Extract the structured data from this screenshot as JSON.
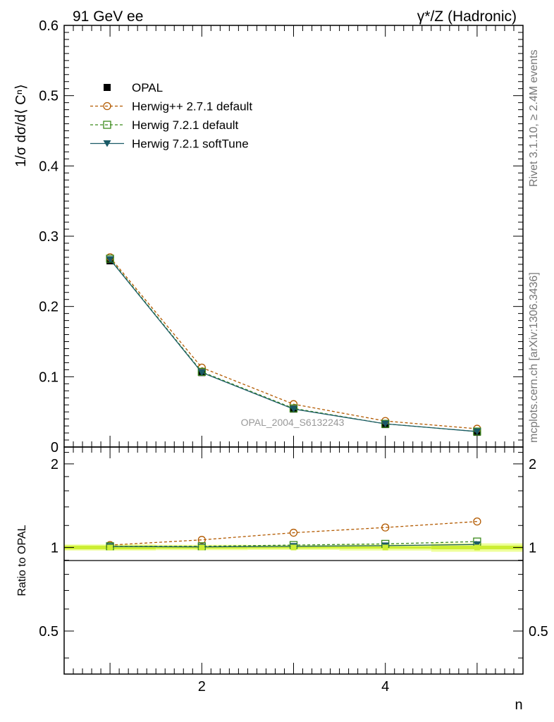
{
  "header": {
    "left": "91 GeV ee",
    "right": "γ*/Z (Hadronic)"
  },
  "side_labels": {
    "rivet": "Rivet 3.1.10, ≥ 2.4M events",
    "mcplots": "mcplots.cern.ch [arXiv:1306.3436]"
  },
  "watermark": "OPAL_2004_S6132243",
  "colors": {
    "opal": "#000000",
    "herwigpp": "#b35a00",
    "herwig721": "#3a8a1a",
    "softtune": "#1a5a66",
    "band_inner": "#ccee33",
    "band_outer": "#eeff99"
  },
  "chart_data": [
    {
      "type": "line",
      "ylabel": "1/σ dσ/d⟨ Cⁿ⟩",
      "xlim": [
        0.5,
        5.5
      ],
      "ylim": [
        0,
        0.6
      ],
      "yticks": [
        "0",
        "0.1",
        "0.2",
        "0.3",
        "0.4",
        "0.5",
        "0.6"
      ],
      "x": [
        1,
        2,
        3,
        4,
        5
      ],
      "legend_position": "top-left",
      "series": [
        {
          "name": "OPAL",
          "marker": "filled-square",
          "values": [
            0.265,
            0.106,
            0.054,
            0.032,
            0.021
          ]
        },
        {
          "name": "Herwig++ 2.7.1 default",
          "marker": "open-circle",
          "dashed": true,
          "values": [
            0.27,
            0.113,
            0.061,
            0.037,
            0.026
          ]
        },
        {
          "name": "Herwig 7.2.1 default",
          "marker": "open-square",
          "dashed": true,
          "values": [
            0.268,
            0.107,
            0.055,
            0.033,
            0.022
          ]
        },
        {
          "name": "Herwig 7.2.1 softTune",
          "marker": "filled-triangle-down",
          "dashed": false,
          "values": [
            0.267,
            0.106,
            0.054,
            0.033,
            0.022
          ]
        }
      ]
    },
    {
      "type": "line",
      "ylabel": "Ratio to OPAL",
      "xlabel": "n",
      "xlim": [
        0.5,
        5.5
      ],
      "ylim": [
        0.35,
        2.3
      ],
      "yticks": [
        "0.5",
        "1",
        "2"
      ],
      "xticks": [
        "2",
        "4"
      ],
      "x": [
        1,
        2,
        3,
        4,
        5
      ],
      "band_inner": [
        0.015,
        0.01,
        0.008,
        0.01,
        0.015
      ],
      "band_outer": [
        0.025,
        0.022,
        0.02,
        0.025,
        0.035
      ],
      "series": [
        {
          "name": "Herwig++ 2.7.1 default",
          "values": [
            1.02,
            1.065,
            1.13,
            1.18,
            1.24
          ]
        },
        {
          "name": "Herwig 7.2.1 default",
          "values": [
            1.01,
            1.01,
            1.02,
            1.03,
            1.05
          ]
        },
        {
          "name": "Herwig 7.2.1 softTune",
          "values": [
            1.008,
            1.005,
            1.01,
            1.015,
            1.025
          ]
        }
      ]
    }
  ]
}
